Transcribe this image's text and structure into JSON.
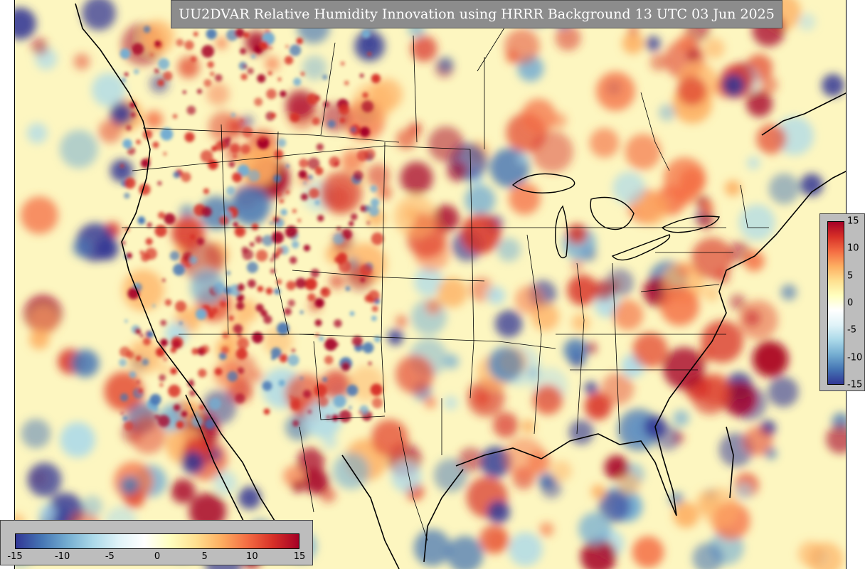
{
  "title": "UU2DVAR Relative Humidity Innovation using HRRR Background 13 UTC 03 Jun 2025",
  "colorbar": {
    "min": -15,
    "max": 15,
    "vertical_ticks": [
      "15",
      "10",
      "5",
      "0",
      "-5",
      "-10",
      "-15"
    ],
    "horizontal_ticks": [
      "-15",
      "-10",
      "-5",
      "0",
      "5",
      "10",
      "15"
    ],
    "colors": [
      "#313695",
      "#4575b4",
      "#74add1",
      "#abd9e9",
      "#e0f3f8",
      "#ffffff",
      "#ffffbf",
      "#fee090",
      "#fdae61",
      "#f46d43",
      "#d73027",
      "#a50026"
    ]
  },
  "map": {
    "background_color": "#fdf6c0",
    "border_color": "#000000"
  }
}
